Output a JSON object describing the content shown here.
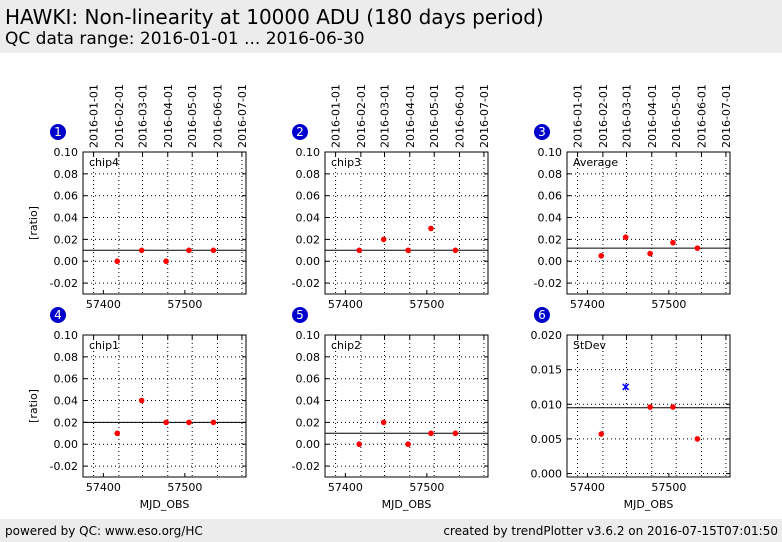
{
  "header": {
    "title": "HAWKI: Non-linearity at 10000 ADU (180 days period)",
    "subtitle": "QC data range: 2016-01-01 ... 2016-06-30"
  },
  "footer": {
    "left": "powered by QC: www.eso.org/HC",
    "right": "created by trendPlotter v3.6.2 on 2016-07-15T07:01:50"
  },
  "colors": {
    "badge": "#0000cc",
    "point": "#ff0000",
    "outlier": "#0000ff",
    "grid": "#000000"
  },
  "chart_data": [
    {
      "type": "scatter",
      "badge": "1",
      "label": "chip4",
      "xlim": [
        57375,
        57575
      ],
      "ylim": [
        -0.03,
        0.1
      ],
      "yticks": [
        "-0.02",
        "0.00",
        "0.02",
        "0.04",
        "0.06",
        "0.08",
        "0.10"
      ],
      "xticks": [
        "57400",
        "57500"
      ],
      "xlabel": "",
      "ylabel": "[ratio]",
      "top_dates": [
        "2016-01-01",
        "2016-02-01",
        "2016-03-01",
        "2016-04-01",
        "2016-05-01",
        "2016-06-01",
        "2016-07-01"
      ],
      "top_dates_shown": true,
      "x": [
        57417,
        57447,
        57477,
        57505,
        57535
      ],
      "y": [
        0.0,
        0.01,
        0.0,
        0.01,
        0.01
      ],
      "outliers": [],
      "ref": 0.01
    },
    {
      "type": "scatter",
      "badge": "2",
      "label": "chip3",
      "xlim": [
        57375,
        57575
      ],
      "ylim": [
        -0.03,
        0.1
      ],
      "yticks": [
        "-0.02",
        "0.00",
        "0.02",
        "0.04",
        "0.06",
        "0.08",
        "0.10"
      ],
      "xticks": [
        "57400",
        "57500"
      ],
      "xlabel": "",
      "ylabel": "",
      "top_dates": [
        "2016-01-01",
        "2016-02-01",
        "2016-03-01",
        "2016-04-01",
        "2016-05-01",
        "2016-06-01",
        "2016-07-01"
      ],
      "top_dates_shown": true,
      "x": [
        57417,
        57447,
        57477,
        57505,
        57535
      ],
      "y": [
        0.01,
        0.02,
        0.01,
        0.03,
        0.01
      ],
      "outliers": [],
      "ref": 0.01
    },
    {
      "type": "scatter",
      "badge": "3",
      "label": "Average",
      "xlim": [
        57375,
        57575
      ],
      "ylim": [
        -0.03,
        0.1
      ],
      "yticks": [
        "-0.02",
        "0.00",
        "0.02",
        "0.04",
        "0.06",
        "0.08",
        "0.10"
      ],
      "xticks": [
        "57400",
        "57500"
      ],
      "xlabel": "",
      "ylabel": "",
      "top_dates": [
        "2016-01-01",
        "2016-02-01",
        "2016-03-01",
        "2016-04-01",
        "2016-05-01",
        "2016-06-01",
        "2016-07-01"
      ],
      "top_dates_shown": true,
      "x": [
        57417,
        57447,
        57477,
        57505,
        57535
      ],
      "y": [
        0.005,
        0.022,
        0.007,
        0.017,
        0.012
      ],
      "outliers": [],
      "ref": 0.012
    },
    {
      "type": "scatter",
      "badge": "4",
      "label": "chip1",
      "xlim": [
        57375,
        57575
      ],
      "ylim": [
        -0.03,
        0.1
      ],
      "yticks": [
        "-0.02",
        "0.00",
        "0.02",
        "0.04",
        "0.06",
        "0.08",
        "0.10"
      ],
      "xticks": [
        "57400",
        "57500"
      ],
      "xlabel": "MJD_OBS",
      "ylabel": "[ratio]",
      "top_dates": [
        "2016-01-01",
        "2016-02-01",
        "2016-03-01",
        "2016-04-01",
        "2016-05-01",
        "2016-06-01",
        "2016-07-01"
      ],
      "top_dates_shown": false,
      "x": [
        57417,
        57447,
        57477,
        57505,
        57535
      ],
      "y": [
        0.01,
        0.04,
        0.02,
        0.02,
        0.02
      ],
      "outliers": [],
      "ref": 0.02
    },
    {
      "type": "scatter",
      "badge": "5",
      "label": "chip2",
      "xlim": [
        57375,
        57575
      ],
      "ylim": [
        -0.03,
        0.1
      ],
      "yticks": [
        "-0.02",
        "0.00",
        "0.02",
        "0.04",
        "0.06",
        "0.08",
        "0.10"
      ],
      "xticks": [
        "57400",
        "57500"
      ],
      "xlabel": "MJD_OBS",
      "ylabel": "",
      "top_dates": [
        "2016-01-01",
        "2016-02-01",
        "2016-03-01",
        "2016-04-01",
        "2016-05-01",
        "2016-06-01",
        "2016-07-01"
      ],
      "top_dates_shown": false,
      "x": [
        57417,
        57447,
        57477,
        57505,
        57535
      ],
      "y": [
        0.0,
        0.02,
        0.0,
        0.01,
        0.01
      ],
      "outliers": [],
      "ref": 0.01
    },
    {
      "type": "scatter",
      "badge": "6",
      "label": "StDev",
      "xlim": [
        57375,
        57575
      ],
      "ylim": [
        -0.0005,
        0.02
      ],
      "yticks": [
        "0.000",
        "0.005",
        "0.010",
        "0.015",
        "0.020"
      ],
      "xticks": [
        "57400",
        "57500"
      ],
      "xlabel": "MJD_OBS",
      "ylabel": "",
      "top_dates": [
        "2016-01-01",
        "2016-02-01",
        "2016-03-01",
        "2016-04-01",
        "2016-05-01",
        "2016-06-01",
        "2016-07-01"
      ],
      "top_dates_shown": false,
      "x": [
        57417,
        57477,
        57505,
        57535
      ],
      "y": [
        0.0057,
        0.0096,
        0.0096,
        0.005
      ],
      "outliers": [
        {
          "x": 57447,
          "y": 0.0125
        }
      ],
      "ref": 0.0095
    }
  ]
}
